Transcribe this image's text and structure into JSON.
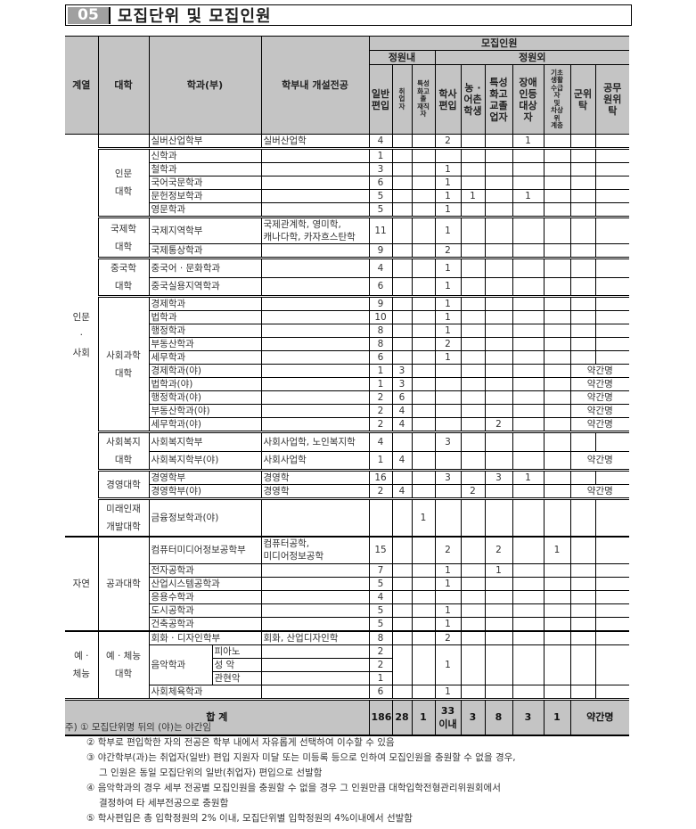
{
  "title": {
    "number": "05",
    "text": "모집단위 및 모집인원"
  },
  "header": {
    "category": "계열",
    "college": "대학",
    "department": "학과(부)",
    "majors": "학부내 개설전공",
    "recruit": "모집인원",
    "within_quota": "정원내",
    "outside_quota": "정원외",
    "columns": [
      "일반\n편입",
      "취\n업\n자",
      "특성\n화고\n졸\n재직\n자",
      "학사\n편입",
      "농 ·\n어촌\n학생",
      "특성\n화고\n교졸\n업자",
      "장애\n인등\n대상\n자",
      "기초\n생활\n수급\n자\n및\n차상\n위\n계층",
      "군위\n탁",
      "공무\n원위\n탁"
    ]
  },
  "groups": [
    {
      "category": "인문\n·\n사회",
      "colleges": [
        {
          "name": "",
          "rows": [
            {
              "dept": "실버산업학부",
              "majors": "실버산업학",
              "values": [
                "4",
                "",
                "",
                "2",
                "",
                "",
                "1",
                "",
                "",
                ""
              ]
            }
          ]
        },
        {
          "name": "인문\n대학",
          "rows": [
            {
              "dept": "신학과",
              "majors": "",
              "values": [
                "1",
                "",
                "",
                "",
                "",
                "",
                "",
                "",
                "",
                ""
              ]
            },
            {
              "dept": "철학과",
              "majors": "",
              "values": [
                "3",
                "",
                "",
                "1",
                "",
                "",
                "",
                "",
                "",
                ""
              ]
            },
            {
              "dept": "국어국문학과",
              "majors": "",
              "values": [
                "6",
                "",
                "",
                "1",
                "",
                "",
                "",
                "",
                "",
                ""
              ]
            },
            {
              "dept": "문헌정보학과",
              "majors": "",
              "values": [
                "5",
                "",
                "",
                "1",
                "1",
                "",
                "1",
                "",
                "",
                ""
              ]
            },
            {
              "dept": "영문학과",
              "majors": "",
              "values": [
                "5",
                "",
                "",
                "1",
                "",
                "",
                "",
                "",
                "",
                ""
              ]
            }
          ]
        },
        {
          "name": "국제학\n대학",
          "rows": [
            {
              "dept": "국제지역학부",
              "majors": "국제관계학, 영미학,\n캐나다학, 카자흐스탄학",
              "values": [
                "11",
                "",
                "",
                "1",
                "",
                "",
                "",
                "",
                "",
                ""
              ]
            },
            {
              "dept": "국제통상학과",
              "majors": "",
              "values": [
                "9",
                "",
                "",
                "2",
                "",
                "",
                "",
                "",
                "",
                ""
              ]
            }
          ]
        },
        {
          "name": "중국학\n대학",
          "rows": [
            {
              "dept": "중국어 · 문화학과",
              "majors": "",
              "values": [
                "4",
                "",
                "",
                "1",
                "",
                "",
                "",
                "",
                "",
                ""
              ]
            },
            {
              "dept": "중국실용지역학과",
              "majors": "",
              "values": [
                "6",
                "",
                "",
                "1",
                "",
                "",
                "",
                "",
                "",
                ""
              ]
            }
          ]
        },
        {
          "name": "사회과학\n대학",
          "rows": [
            {
              "dept": "경제학과",
              "majors": "",
              "values": [
                "9",
                "",
                "",
                "1",
                "",
                "",
                "",
                "",
                "",
                ""
              ]
            },
            {
              "dept": "법학과",
              "majors": "",
              "values": [
                "10",
                "",
                "",
                "1",
                "",
                "",
                "",
                "",
                "",
                ""
              ]
            },
            {
              "dept": "행정학과",
              "majors": "",
              "values": [
                "8",
                "",
                "",
                "1",
                "",
                "",
                "",
                "",
                "",
                ""
              ]
            },
            {
              "dept": "부동산학과",
              "majors": "",
              "values": [
                "8",
                "",
                "",
                "2",
                "",
                "",
                "",
                "",
                "",
                ""
              ]
            },
            {
              "dept": "세무학과",
              "majors": "",
              "values": [
                "6",
                "",
                "",
                "1",
                "",
                "",
                "",
                "",
                "",
                ""
              ]
            },
            {
              "dept": "경제학과(야)",
              "majors": "",
              "values": [
                "1",
                "3",
                "",
                "",
                "",
                "",
                "",
                "",
                "약간명"
              ]
            },
            {
              "dept": "법학과(야)",
              "majors": "",
              "values": [
                "1",
                "3",
                "",
                "",
                "",
                "",
                "",
                "",
                "약간명"
              ]
            },
            {
              "dept": "행정학과(야)",
              "majors": "",
              "values": [
                "2",
                "6",
                "",
                "",
                "",
                "",
                "",
                "",
                "약간명"
              ]
            },
            {
              "dept": "부동산학과(야)",
              "majors": "",
              "values": [
                "2",
                "4",
                "",
                "",
                "",
                "",
                "",
                "",
                "약간명"
              ]
            },
            {
              "dept": "세무학과(야)",
              "majors": "",
              "values": [
                "2",
                "4",
                "",
                "",
                "",
                "2",
                "",
                "",
                "약간명"
              ]
            }
          ]
        },
        {
          "name": "사회복지\n대학",
          "rows": [
            {
              "dept": "사회복지학부",
              "majors": "사회사업학, 노인복지학",
              "values": [
                "4",
                "",
                "",
                "3",
                "",
                "",
                "",
                "",
                "",
                ""
              ]
            },
            {
              "dept": "사회복지학부(야)",
              "majors": "사회사업학",
              "values": [
                "1",
                "4",
                "",
                "",
                "",
                "",
                "",
                "",
                "약간명"
              ]
            }
          ]
        },
        {
          "name": "경영대학",
          "rows": [
            {
              "dept": "경영학부",
              "majors": "경영학",
              "values": [
                "16",
                "",
                "",
                "3",
                "",
                "3",
                "1",
                "",
                "",
                ""
              ]
            },
            {
              "dept": "경영학부(야)",
              "majors": "경영학",
              "values": [
                "2",
                "4",
                "",
                "",
                "2",
                "",
                "",
                "",
                "약간명"
              ]
            }
          ]
        },
        {
          "name": "미래인재\n개발대학",
          "rows": [
            {
              "dept": "금융정보학과(야)",
              "majors": "",
              "values": [
                "",
                "",
                "1",
                "",
                "",
                "",
                "",
                "",
                "",
                ""
              ],
              "tall": true
            }
          ]
        }
      ]
    },
    {
      "category": "자연",
      "colleges": [
        {
          "name": "공과대학",
          "rows": [
            {
              "dept": "컴퓨터미디어정보공학부",
              "majors": "컴퓨터공학,\n미디어정보공학",
              "values": [
                "15",
                "",
                "",
                "2",
                "",
                "2",
                "",
                "1",
                "",
                ""
              ]
            },
            {
              "dept": "전자공학과",
              "majors": "",
              "values": [
                "7",
                "",
                "",
                "1",
                "",
                "1",
                "",
                "",
                "",
                ""
              ]
            },
            {
              "dept": "산업시스템공학과",
              "majors": "",
              "values": [
                "5",
                "",
                "",
                "1",
                "",
                "",
                "",
                "",
                "",
                ""
              ]
            },
            {
              "dept": "응용수학과",
              "majors": "",
              "values": [
                "4",
                "",
                "",
                "",
                "",
                "",
                "",
                "",
                "",
                ""
              ]
            },
            {
              "dept": "도시공학과",
              "majors": "",
              "values": [
                "5",
                "",
                "",
                "1",
                "",
                "",
                "",
                "",
                "",
                ""
              ]
            },
            {
              "dept": "건축공학과",
              "majors": "",
              "values": [
                "5",
                "",
                "",
                "1",
                "",
                "",
                "",
                "",
                "",
                ""
              ]
            }
          ]
        }
      ]
    },
    {
      "category": "예 ·\n체능",
      "colleges": [
        {
          "name": "예 · 체능\n대학",
          "rows": [
            {
              "dept": "회화 · 디자인학부",
              "majors": "회화, 산업디자인학",
              "values": [
                "8",
                "",
                "",
                "2",
                "",
                "",
                "",
                "",
                "",
                ""
              ]
            },
            {
              "dept": "음악학과",
              "sub": "피아노",
              "majors": "",
              "values": [
                "2",
                "",
                "",
                "1",
                "",
                "",
                "",
                "",
                "",
                ""
              ]
            },
            {
              "dept": "음악학과",
              "sub": "성    악",
              "majors": "",
              "values": [
                "2"
              ]
            },
            {
              "dept": "음악학과",
              "sub": "관현악",
              "majors": "",
              "values": [
                "1"
              ]
            },
            {
              "dept": "사회체육학과",
              "majors": "",
              "values": [
                "6",
                "",
                "",
                "1",
                "",
                "",
                "",
                "",
                "",
                ""
              ]
            }
          ]
        }
      ]
    }
  ],
  "total": {
    "label": "합          계",
    "values": [
      "186",
      "28",
      "1",
      "33\n이내",
      "3",
      "8",
      "3",
      "1",
      "약간명"
    ]
  },
  "notes": {
    "prefix": "주)",
    "items": [
      {
        "mark": "①",
        "text": "모집단위명 뒤의 (야)는 야간임"
      },
      {
        "mark": "②",
        "text": "학부로 편입학한 자의 전공은 학부 내에서 자유롭게 선택하여 이수할 수 있음"
      },
      {
        "mark": "③",
        "text": "야간학부(과)는 취업자(일반) 편입 지원자 미달 또는 미등록 등으로 인하여 모집인원을 충원할 수 없을 경우,",
        "cont": "그 인원은 동일 모집단위의 일반(취업자) 편입으로 선발함"
      },
      {
        "mark": "④",
        "text": "음악학과의 경우 세부 전공별 모집인원을 충원할 수 없을 경우 그 인원만큼 대학입학전형관리위원회에서",
        "cont": "결정하여 타 세부전공으로 충원함"
      },
      {
        "mark": "⑤",
        "text": "학사편입은 총 입학정원의 2% 이내, 모집단위별 입학정원의 4%이내에서 선발함"
      }
    ]
  }
}
